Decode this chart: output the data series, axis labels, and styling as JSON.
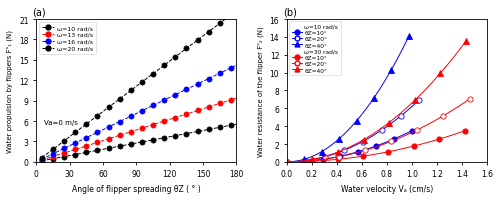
{
  "fig_width": 5.0,
  "fig_height": 2.01,
  "dpi": 100,
  "panel_a": {
    "xlabel": "Angle of flipper spreading θZ ( ° )",
    "ylabel": "Water propulsion by flippers Fˢ₁ (N)",
    "xlim": [
      0,
      180
    ],
    "ylim": [
      0,
      21
    ],
    "xticks": [
      0,
      30,
      60,
      90,
      120,
      150,
      180
    ],
    "yticks": [
      0,
      3,
      6,
      9,
      12,
      15,
      18,
      21
    ],
    "annotation": "Va=0 m/s",
    "series": [
      {
        "label": "ω=10 rad/s",
        "color": "black",
        "scale": 0.0308
      },
      {
        "label": "ω=13 rad/s",
        "color": "red",
        "scale": 0.0521
      },
      {
        "label": "ω=16 rad/s",
        "color": "blue",
        "scale": 0.079
      },
      {
        "label": "ω=20 rad/s",
        "color": "black",
        "scale": 0.1235
      }
    ],
    "theta_vals": [
      5,
      10,
      15,
      20,
      25,
      30,
      35,
      40,
      45,
      50,
      55,
      60,
      65,
      70,
      75,
      80,
      85,
      90,
      95,
      100,
      105,
      110,
      115,
      120,
      125,
      130,
      135,
      140,
      145,
      150,
      155,
      160,
      165,
      170,
      175,
      180
    ]
  },
  "panel_b": {
    "xlabel": "Water velocity Vₐ (cm/s)",
    "ylabel": "Water resistance of the flipper Fˢ₂ (N)",
    "xlim": [
      0.0,
      1.6
    ],
    "ylim": [
      0,
      16
    ],
    "xticks": [
      0.0,
      0.2,
      0.4,
      0.6,
      0.8,
      1.0,
      1.2,
      1.4,
      1.6
    ],
    "yticks": [
      0,
      2,
      4,
      6,
      8,
      10,
      12,
      14,
      16
    ],
    "omega_blue_label": "ω=10 rad/s",
    "omega_red_label": "ω=30 rad/s",
    "blue_series": [
      {
        "label": "θZ=10°",
        "marker": "o",
        "filled": true,
        "scale": 3.5,
        "va_max": 1.0
      },
      {
        "label": "θZ=20°",
        "marker": "o",
        "filled": false,
        "scale": 6.2,
        "va_max": 1.06
      },
      {
        "label": "θZ=40°",
        "marker": "^",
        "filled": true,
        "scale": 14.8,
        "va_max": 0.975
      }
    ],
    "red_series": [
      {
        "label": "θZ=10°",
        "marker": "o",
        "filled": true,
        "scale": 1.72,
        "va_max": 1.42
      },
      {
        "label": "θZ=20°",
        "marker": "o",
        "filled": false,
        "scale": 3.3,
        "va_max": 1.46
      },
      {
        "label": "θZ=40°",
        "marker": "^",
        "filled": true,
        "scale": 6.6,
        "va_max": 1.43
      }
    ]
  }
}
